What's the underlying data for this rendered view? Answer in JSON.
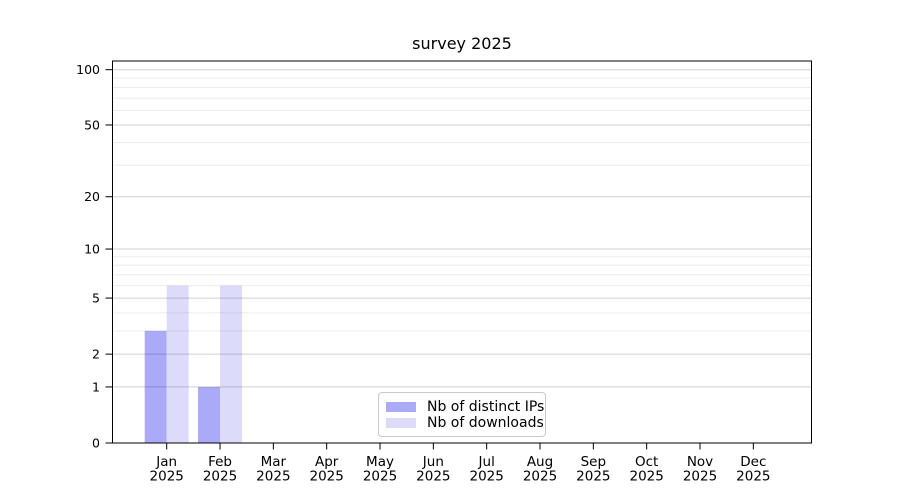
{
  "colors": {
    "background": "#ffffff",
    "bar_distinct_ips": "#aaaaf8",
    "bar_downloads": "#dcdcfa",
    "axis": "#000000",
    "text": "#000000",
    "grid_major": "rgba(0,0,0,0.18)",
    "grid_minor": "rgba(0,0,0,0.075)",
    "legend_border": "#c9c9c9"
  },
  "chart_data": {
    "type": "bar",
    "title": "survey 2025",
    "categories": [
      "Jan 2025",
      "Feb 2025",
      "Mar 2025",
      "Apr 2025",
      "May 2025",
      "Jun 2025",
      "Jul 2025",
      "Aug 2025",
      "Sep 2025",
      "Oct 2025",
      "Nov 2025",
      "Dec 2025"
    ],
    "months": [
      "Jan",
      "Feb",
      "Mar",
      "Apr",
      "May",
      "Jun",
      "Jul",
      "Aug",
      "Sep",
      "Oct",
      "Nov",
      "Dec"
    ],
    "year_label": "2025",
    "series": [
      {
        "name": "Nb of distinct IPs",
        "color": "#aaaaf8",
        "values": [
          3,
          1,
          0,
          0,
          0,
          0,
          0,
          0,
          0,
          0,
          0,
          0
        ]
      },
      {
        "name": "Nb of downloads",
        "color": "#dcdcfa",
        "values": [
          6,
          6,
          0,
          0,
          0,
          0,
          0,
          0,
          0,
          0,
          0,
          0
        ]
      }
    ],
    "xlabel": "",
    "ylabel": "",
    "y_scale": "log1p",
    "ylim": [
      0,
      111
    ],
    "y_major_ticks": [
      0,
      1,
      2,
      5,
      10,
      20,
      50,
      100
    ],
    "y_minor_gridlines": [
      3,
      4,
      6,
      7,
      8,
      9,
      30,
      40,
      60,
      70,
      80,
      90
    ],
    "grid": "horizontal",
    "legend_position": "lower center"
  }
}
